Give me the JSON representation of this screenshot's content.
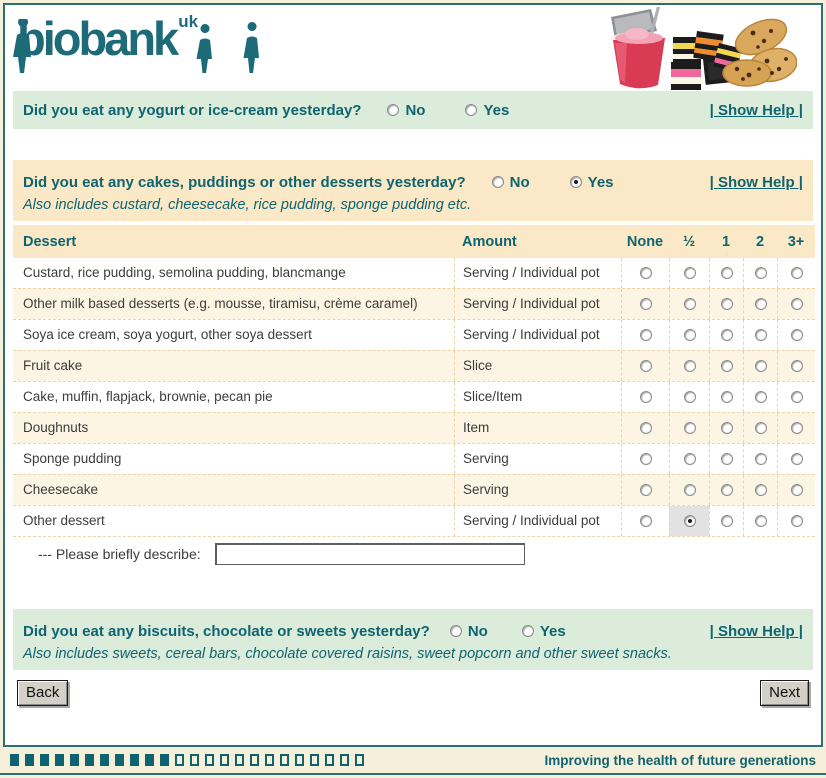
{
  "logo": {
    "text": "biobank",
    "superscript": "uk"
  },
  "questions": {
    "yogurt": {
      "text": "Did you eat any yogurt or ice-cream yesterday?",
      "no_label": "No",
      "yes_label": "Yes",
      "selected": null,
      "help_label": "| Show Help |"
    },
    "desserts": {
      "text": "Did you eat any cakes, puddings or other desserts yesterday?",
      "note": "Also includes custard, cheesecake, rice pudding, sponge pudding etc.",
      "no_label": "No",
      "yes_label": "Yes",
      "selected": "yes",
      "help_label": "| Show Help |"
    },
    "biscuits": {
      "text": "Did you eat any biscuits, chocolate or sweets yesterday?",
      "note": "Also includes sweets, cereal bars, chocolate covered raisins, sweet popcorn and other sweet snacks.",
      "no_label": "No",
      "yes_label": "Yes",
      "selected": null,
      "help_label": "| Show Help |"
    }
  },
  "dessert_table": {
    "headers": {
      "dessert": "Dessert",
      "amount": "Amount",
      "options": [
        "None",
        "½",
        "1",
        "2",
        "3+"
      ]
    },
    "rows": [
      {
        "dessert": "Custard, rice pudding, semolina pudding, blancmange",
        "amount": "Serving / Individual pot",
        "selected": null
      },
      {
        "dessert": "Other milk based desserts (e.g. mousse, tiramisu, crème caramel)",
        "amount": "Serving / Individual pot",
        "selected": null
      },
      {
        "dessert": "Soya ice cream, soya yogurt, other soya dessert",
        "amount": "Serving / Individual pot",
        "selected": null
      },
      {
        "dessert": "Fruit cake",
        "amount": "Slice",
        "selected": null
      },
      {
        "dessert": "Cake, muffin, flapjack, brownie, pecan pie",
        "amount": "Slice/Item",
        "selected": null
      },
      {
        "dessert": "Doughnuts",
        "amount": "Item",
        "selected": null
      },
      {
        "dessert": "Sponge pudding",
        "amount": "Serving",
        "selected": null
      },
      {
        "dessert": "Cheesecake",
        "amount": "Serving",
        "selected": null
      },
      {
        "dessert": "Other dessert",
        "amount": "Serving / Individual pot",
        "selected": 1
      }
    ],
    "describe_label": "--- Please briefly describe:",
    "describe_value": ""
  },
  "buttons": {
    "back": "Back",
    "next": "Next"
  },
  "footer": {
    "progress_filled": 11,
    "progress_total": 24,
    "tagline": "Improving the health of future generations"
  },
  "colors": {
    "teal": "#0e6470",
    "logo_teal": "#1d6a78",
    "green_band": "#dcecdb",
    "peach_band": "#fbe8c6",
    "row_alt": "#fdf5e3",
    "selected_cell": "#e2e2e2"
  }
}
